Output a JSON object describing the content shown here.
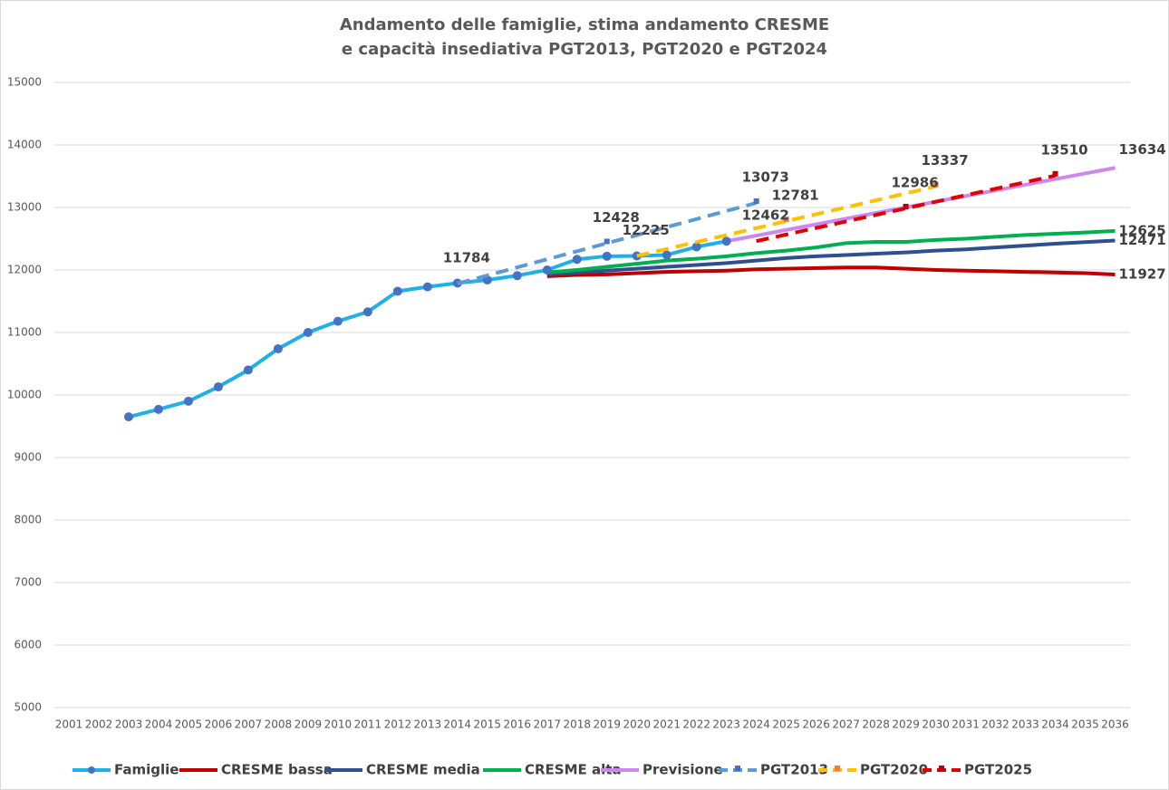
{
  "chart_data": {
    "type": "line",
    "title": [
      "Andamento delle famiglie, stima andamento CRESME",
      "e capacità insediativa PGT2013, PGT2020 e PGT2024"
    ],
    "categories": [
      "2001",
      "2002",
      "2003",
      "2004",
      "2005",
      "2006",
      "2007",
      "2008",
      "2009",
      "2010",
      "2011",
      "2012",
      "2013",
      "2014",
      "2015",
      "2016",
      "2017",
      "2018",
      "2019",
      "2020",
      "2021",
      "2022",
      "2023",
      "2024",
      "2025",
      "2026",
      "2027",
      "2028",
      "2029",
      "2030",
      "2031",
      "2032",
      "2033",
      "2034",
      "2035",
      "2036"
    ],
    "ylim": [
      5000,
      15000
    ],
    "yticks": [
      5000,
      6000,
      7000,
      8000,
      9000,
      10000,
      11000,
      12000,
      13000,
      14000,
      15000
    ],
    "grid": true,
    "legend": "bottom",
    "series": [
      {
        "name": "Famiglie",
        "color": "#1fb0e8",
        "marker": "circle",
        "marker_color": "#4472c4",
        "values": [
          null,
          null,
          9650,
          9770,
          9900,
          10130,
          10400,
          10740,
          11000,
          11180,
          11330,
          11660,
          11730,
          11790,
          11840,
          11910,
          12000,
          12170,
          12220,
          12225,
          12240,
          12370,
          12460,
          null,
          null,
          null,
          null,
          null,
          null,
          null,
          null,
          null,
          null,
          null,
          null,
          null
        ]
      },
      {
        "name": "CRESME bassa",
        "color": "#c00000",
        "values": [
          null,
          null,
          null,
          null,
          null,
          null,
          null,
          null,
          null,
          null,
          null,
          null,
          null,
          null,
          null,
          null,
          11900,
          11920,
          11930,
          11950,
          11970,
          11980,
          11990,
          12010,
          12020,
          12030,
          12040,
          12040,
          12020,
          12000,
          11990,
          11980,
          11970,
          11960,
          11950,
          11927
        ],
        "value_labels": [
          null,
          null,
          null,
          null,
          null,
          null,
          null,
          null,
          null,
          null,
          null,
          null,
          null,
          null,
          null,
          null,
          null,
          null,
          null,
          null,
          null,
          null,
          null,
          null,
          null,
          null,
          null,
          null,
          null,
          null,
          null,
          null,
          null,
          null,
          null,
          "11927"
        ]
      },
      {
        "name": "CRESME media",
        "color": "#2f4f8f",
        "values": [
          null,
          null,
          null,
          null,
          null,
          null,
          null,
          null,
          null,
          null,
          null,
          null,
          null,
          null,
          null,
          null,
          11930,
          11960,
          11990,
          12020,
          12050,
          12080,
          12110,
          12150,
          12190,
          12220,
          12240,
          12260,
          12280,
          12310,
          12330,
          12360,
          12390,
          12420,
          12445,
          12471
        ],
        "value_labels": [
          null,
          null,
          null,
          null,
          null,
          null,
          null,
          null,
          null,
          null,
          null,
          null,
          null,
          null,
          null,
          null,
          null,
          null,
          null,
          null,
          null,
          null,
          null,
          null,
          null,
          null,
          null,
          null,
          null,
          null,
          null,
          null,
          null,
          null,
          null,
          "12471"
        ]
      },
      {
        "name": "CRESME alta",
        "color": "#00b050",
        "values": [
          null,
          null,
          null,
          null,
          null,
          null,
          null,
          null,
          null,
          null,
          null,
          null,
          null,
          null,
          null,
          null,
          11960,
          12000,
          12050,
          12100,
          12150,
          12180,
          12220,
          12270,
          12310,
          12360,
          12430,
          12450,
          12450,
          12480,
          12500,
          12530,
          12560,
          12580,
          12600,
          12625
        ],
        "value_labels": [
          null,
          null,
          null,
          null,
          null,
          null,
          null,
          null,
          null,
          null,
          null,
          null,
          null,
          null,
          null,
          null,
          null,
          null,
          null,
          null,
          null,
          null,
          null,
          null,
          null,
          null,
          null,
          null,
          null,
          null,
          null,
          null,
          null,
          null,
          null,
          "12625"
        ]
      },
      {
        "name": "Previsione",
        "color": "#cc88f0",
        "values": [
          null,
          null,
          null,
          null,
          null,
          null,
          null,
          null,
          null,
          null,
          null,
          null,
          null,
          null,
          null,
          null,
          null,
          null,
          null,
          null,
          null,
          null,
          12460,
          12550,
          12641,
          12731,
          12821,
          12912,
          13002,
          13092,
          13183,
          13273,
          13363,
          13454,
          13544,
          13634
        ],
        "value_labels": [
          null,
          null,
          null,
          null,
          null,
          null,
          null,
          null,
          null,
          null,
          null,
          null,
          null,
          null,
          null,
          null,
          null,
          null,
          null,
          null,
          null,
          null,
          null,
          null,
          null,
          null,
          null,
          null,
          null,
          null,
          null,
          null,
          null,
          null,
          null,
          "13634"
        ]
      },
      {
        "name": "PGT2013",
        "color": "#5b9bd5",
        "dashed": true,
        "marker": "square",
        "marker_color": "#4472c4",
        "values": [
          null,
          null,
          null,
          null,
          null,
          null,
          null,
          null,
          null,
          null,
          null,
          null,
          null,
          11784,
          11913,
          12042,
          12171,
          12300,
          12428,
          12557,
          12686,
          12815,
          12944,
          13073,
          null,
          null,
          null,
          null,
          null,
          null,
          null,
          null,
          null,
          null,
          null,
          null
        ],
        "value_labels": [
          null,
          null,
          null,
          null,
          null,
          null,
          null,
          null,
          null,
          null,
          null,
          null,
          null,
          "11784",
          null,
          null,
          null,
          null,
          "12428",
          null,
          null,
          null,
          null,
          "13073",
          null,
          null,
          null,
          null,
          null,
          null,
          null,
          null,
          null,
          null,
          null,
          null
        ]
      },
      {
        "name": "PGT2020",
        "color": "#ffc000",
        "dashed": true,
        "marker": "square",
        "marker_color": "#ed7d31",
        "values": [
          null,
          null,
          null,
          null,
          null,
          null,
          null,
          null,
          null,
          null,
          null,
          null,
          null,
          null,
          null,
          null,
          null,
          null,
          null,
          12225,
          12336,
          12447,
          12558,
          12670,
          12781,
          12892,
          13003,
          13114,
          13226,
          13337,
          null,
          null,
          null,
          null,
          null,
          null
        ],
        "value_labels": [
          null,
          null,
          null,
          null,
          null,
          null,
          null,
          null,
          null,
          null,
          null,
          null,
          null,
          null,
          null,
          null,
          null,
          null,
          null,
          "12225",
          null,
          null,
          null,
          null,
          "12781",
          null,
          null,
          null,
          null,
          "13337",
          null,
          null,
          null,
          null,
          null,
          null
        ]
      },
      {
        "name": "PGT2025",
        "color": "#e00000",
        "dashed": true,
        "marker": "square",
        "marker_color": "#c00000",
        "values": [
          null,
          null,
          null,
          null,
          null,
          null,
          null,
          null,
          null,
          null,
          null,
          null,
          null,
          null,
          null,
          null,
          null,
          null,
          null,
          null,
          null,
          null,
          null,
          12462,
          12567,
          12672,
          12776,
          12881,
          12986,
          13091,
          13196,
          13300,
          13405,
          13510,
          null,
          null
        ],
        "value_labels": [
          null,
          null,
          null,
          null,
          null,
          null,
          null,
          null,
          null,
          null,
          null,
          null,
          null,
          null,
          null,
          null,
          null,
          null,
          null,
          null,
          null,
          null,
          null,
          "12462",
          null,
          null,
          null,
          null,
          "12986",
          null,
          null,
          null,
          null,
          "13510",
          null,
          null
        ]
      }
    ]
  }
}
